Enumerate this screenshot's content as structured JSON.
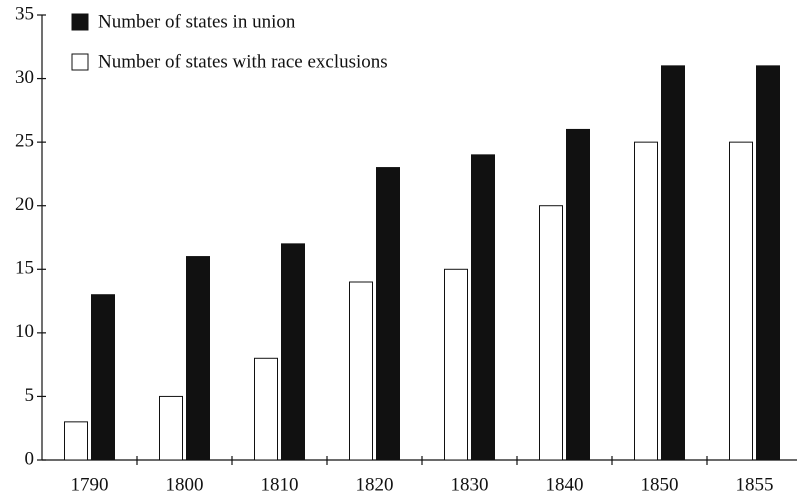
{
  "chart_data": {
    "type": "bar",
    "categories": [
      "1790",
      "1800",
      "1810",
      "1820",
      "1830",
      "1840",
      "1850",
      "1855"
    ],
    "series": [
      {
        "name": "Number of states with race exclusions",
        "color": "#ffffff",
        "values": [
          3,
          5,
          8,
          14,
          15,
          20,
          25,
          25
        ]
      },
      {
        "name": "Number of states in union",
        "color": "#111111",
        "values": [
          13,
          16,
          17,
          23,
          24,
          26,
          31,
          31
        ]
      }
    ],
    "ylim": [
      0,
      35
    ],
    "yticks": [
      0,
      5,
      10,
      15,
      20,
      25,
      30,
      35
    ],
    "grid": false,
    "legend": "upper left"
  }
}
